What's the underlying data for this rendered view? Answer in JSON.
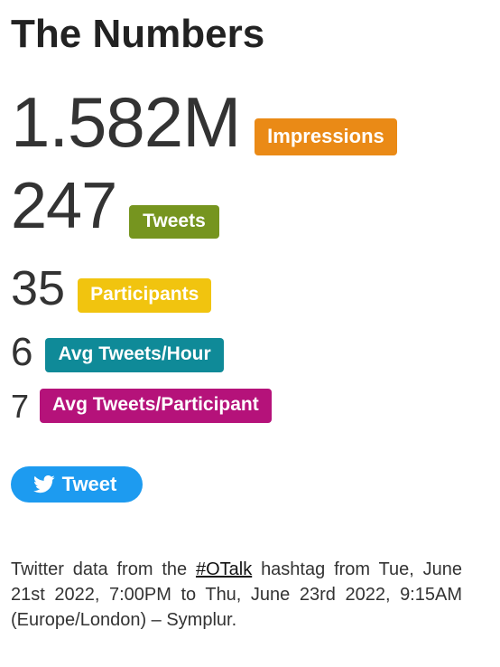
{
  "title": "The Numbers",
  "stats": [
    {
      "value": "1.582M",
      "label": "Impressions",
      "color": "#ea8a16"
    },
    {
      "value": "247",
      "label": "Tweets",
      "color": "#76951f"
    },
    {
      "value": "35",
      "label": "Participants",
      "color": "#f1c40f"
    },
    {
      "value": "6",
      "label": "Avg Tweets/Hour",
      "color": "#0f8a98"
    },
    {
      "value": "7",
      "label": "Avg Tweets/Participant",
      "color": "#b5127a"
    }
  ],
  "tweet_button": {
    "label": "Tweet",
    "icon": "twitter-bird-icon",
    "color": "#1d9bf0"
  },
  "footer": {
    "prefix": "Twitter data from the",
    "hashtag": "#OTalk",
    "suffix": "hashtag from Tue, June 21st 2022, 7:00PM to Thu, June 23rd 2022, 9:15AM (Europe/London) – Symplur."
  }
}
